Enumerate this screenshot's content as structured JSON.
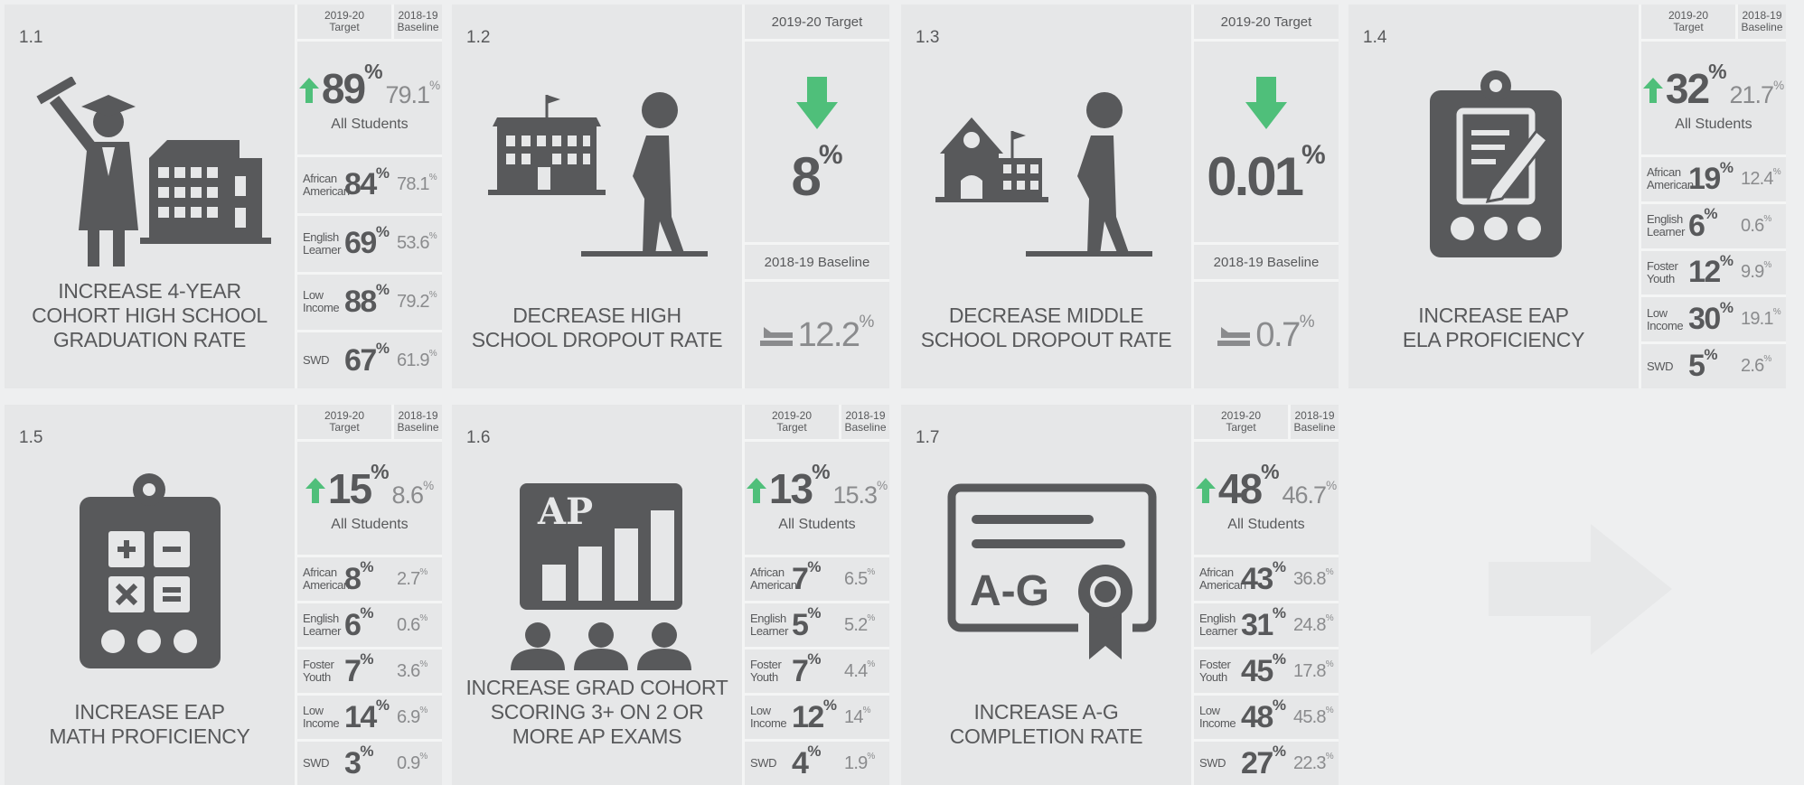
{
  "unit": "%",
  "cards": [
    {
      "id": "1.1",
      "type": "standard",
      "title": [
        "INCREASE 4-YEAR",
        "COHORT HIGH SCHOOL",
        "GRADUATION RATE"
      ],
      "target_header": "2019-20 Target",
      "baseline_header": "2018-19 Baseline",
      "all": {
        "label": "All Students",
        "target": 89,
        "baseline": 79.1
      },
      "groups": [
        {
          "name": "African American",
          "target": 84,
          "baseline": 78.1
        },
        {
          "name": "English Learner",
          "target": 69,
          "baseline": 53.6
        },
        {
          "name": "Low Income",
          "target": 88,
          "baseline": 79.2
        },
        {
          "name": "SWD",
          "target": 67,
          "baseline": 61.9
        }
      ]
    },
    {
      "id": "1.2",
      "type": "decrease",
      "title": [
        "DECREASE HIGH",
        "SCHOOL DROPOUT RATE"
      ],
      "target_header": "2019-20 Target",
      "baseline_header": "2018-19 Baseline",
      "target": 8,
      "baseline": 12.2
    },
    {
      "id": "1.3",
      "type": "decrease",
      "title": [
        "DECREASE MIDDLE",
        "SCHOOL DROPOUT RATE"
      ],
      "target_header": "2019-20 Target",
      "baseline_header": "2018-19 Baseline",
      "target": 0.01,
      "baseline": 0.7
    },
    {
      "id": "1.4",
      "type": "standard",
      "title": [
        "INCREASE EAP",
        "ELA PROFICIENCY"
      ],
      "target_header": "2019-20 Target",
      "baseline_header": "2018-19 Baseline",
      "all": {
        "label": "All Students",
        "target": 32,
        "baseline": 21.7
      },
      "groups": [
        {
          "name": "African American",
          "target": 19,
          "baseline": 12.4
        },
        {
          "name": "English Learner",
          "target": 6,
          "baseline": 0.6
        },
        {
          "name": "Foster Youth",
          "target": 12,
          "baseline": 9.9
        },
        {
          "name": "Low Income",
          "target": 30,
          "baseline": 19.1
        },
        {
          "name": "SWD",
          "target": 5,
          "baseline": 2.6
        }
      ]
    },
    {
      "id": "1.5",
      "type": "standard",
      "title": [
        "INCREASE EAP",
        "MATH PROFICIENCY"
      ],
      "target_header": "2019-20 Target",
      "baseline_header": "2018-19 Baseline",
      "all": {
        "label": "All Students",
        "target": 15,
        "baseline": 8.6
      },
      "groups": [
        {
          "name": "African American",
          "target": 8,
          "baseline": 2.7
        },
        {
          "name": "English Learner",
          "target": 6,
          "baseline": 0.6
        },
        {
          "name": "Foster Youth",
          "target": 7,
          "baseline": 3.6
        },
        {
          "name": "Low Income",
          "target": 14,
          "baseline": 6.9
        },
        {
          "name": "SWD",
          "target": 3,
          "baseline": 0.9
        }
      ]
    },
    {
      "id": "1.6",
      "type": "standard",
      "title": [
        "INCREASE GRAD COHORT",
        "SCORING 3+ ON 2 OR",
        "MORE AP EXAMS"
      ],
      "target_header": "2019-20 Target",
      "baseline_header": "2018-19 Baseline",
      "icon_text": "AP",
      "all": {
        "label": "All Students",
        "target": 13,
        "baseline": 15.3
      },
      "groups": [
        {
          "name": "African American",
          "target": 7,
          "baseline": 6.5
        },
        {
          "name": "English Learner",
          "target": 5,
          "baseline": 5.2
        },
        {
          "name": "Foster Youth",
          "target": 7,
          "baseline": 4.4
        },
        {
          "name": "Low Income",
          "target": 12,
          "baseline": 14
        },
        {
          "name": "SWD",
          "target": 4,
          "baseline": 1.9
        }
      ]
    },
    {
      "id": "1.7",
      "type": "standard",
      "title": [
        "INCREASE A-G",
        "COMPLETION RATE"
      ],
      "target_header": "2019-20 Target",
      "baseline_header": "2018-19 Baseline",
      "icon_text": "A-G",
      "all": {
        "label": "All Students",
        "target": 48,
        "baseline": 46.7
      },
      "groups": [
        {
          "name": "African American",
          "target": 43,
          "baseline": 36.8
        },
        {
          "name": "English Learner",
          "target": 31,
          "baseline": 24.8
        },
        {
          "name": "Foster Youth",
          "target": 45,
          "baseline": 17.8
        },
        {
          "name": "Low Income",
          "target": 48,
          "baseline": 45.8
        },
        {
          "name": "SWD",
          "target": 27,
          "baseline": 22.3
        }
      ]
    }
  ]
}
